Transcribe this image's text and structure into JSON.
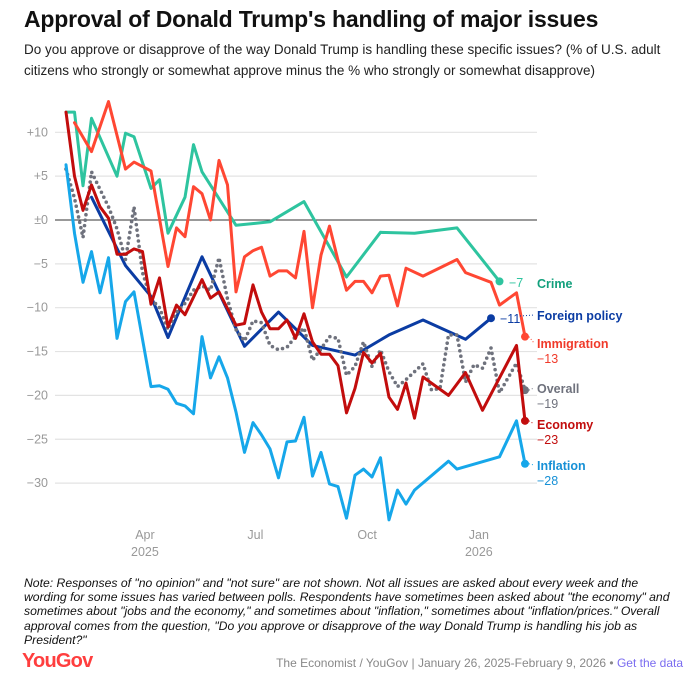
{
  "title": "Approval of Donald Trump's handling of major issues",
  "subtitle": "Do you approve or disapprove of the way Donald Trump is handling these specific issues? (% of U.S. adult citizens who strongly or somewhat approve minus the % who strongly or somewhat disapprove)",
  "note": "Note: Responses of \"no opinion\" and \"not sure\" are not shown. Not all issues are asked about every week and the wording for some issues has varied between polls. Respondents have sometimes been asked about \"the economy\" and sometimes about \"jobs and the economy,\" and sometimes about \"inflation,\" sometimes about \"inflation/prices.\" Overall approval comes from the question, \"Do you approve or disapprove of the way Donald Trump is handling his job as President?\"",
  "footer": {
    "logo": "YouGov",
    "source": "The Economist / YouGov | January 26, 2025-February 9, 2026 •",
    "link": "Get the data"
  },
  "chart_data": {
    "type": "line",
    "ylim": [
      -35,
      13
    ],
    "yticks": [
      10,
      5,
      0,
      -5,
      -10,
      -15,
      -20,
      -25,
      -30
    ],
    "ytick_labels": [
      "+10",
      "+5",
      "±0",
      "−5",
      "−10",
      "−15",
      "−20",
      "−25",
      "−30"
    ],
    "xticks": [
      {
        "date": "2025-04-01",
        "label": "Apr",
        "sub": "2025"
      },
      {
        "date": "2025-07-01",
        "label": "Jul",
        "sub": ""
      },
      {
        "date": "2025-10-01",
        "label": "Oct",
        "sub": ""
      },
      {
        "date": "2026-01-01",
        "label": "Jan",
        "sub": "2026"
      }
    ],
    "grid": true,
    "x": [
      "2025-01-26",
      "2025-02-02",
      "2025-02-09",
      "2025-02-16",
      "2025-02-23",
      "2025-03-02",
      "2025-03-09",
      "2025-03-16",
      "2025-03-23",
      "2025-03-30",
      "2025-04-06",
      "2025-04-13",
      "2025-04-20",
      "2025-04-27",
      "2025-05-04",
      "2025-05-11",
      "2025-05-18",
      "2025-05-25",
      "2025-06-01",
      "2025-06-08",
      "2025-06-15",
      "2025-06-22",
      "2025-06-29",
      "2025-07-06",
      "2025-07-13",
      "2025-07-20",
      "2025-07-27",
      "2025-08-03",
      "2025-08-10",
      "2025-08-17",
      "2025-08-24",
      "2025-08-31",
      "2025-09-07",
      "2025-09-14",
      "2025-09-21",
      "2025-09-28",
      "2025-10-05",
      "2025-10-12",
      "2025-10-19",
      "2025-10-26",
      "2025-11-02",
      "2025-11-09",
      "2025-11-16",
      "2025-11-23",
      "2025-11-30",
      "2025-12-07",
      "2025-12-14",
      "2025-12-21",
      "2025-12-28",
      "2026-01-04",
      "2026-01-11",
      "2026-01-18",
      "2026-01-25",
      "2026-02-01",
      "2026-02-08"
    ],
    "series": [
      {
        "name": "Crime",
        "final": "−7",
        "color": "#2ec49f",
        "label_color": "#12a07c",
        "values": [
          12.3,
          12.3,
          3.9,
          11.6,
          null,
          null,
          5.0,
          9.9,
          9.5,
          null,
          3.6,
          4.6,
          -1.5,
          null,
          2.6,
          8.6,
          5.5,
          null,
          null,
          null,
          -0.6,
          null,
          null,
          null,
          -0.2,
          null,
          null,
          null,
          2.1,
          null,
          null,
          null,
          null,
          -6.5,
          null,
          null,
          null,
          -1.4,
          null,
          null,
          null,
          -1.5,
          null,
          null,
          null,
          null,
          -0.9,
          null,
          null,
          null,
          null,
          -7,
          null,
          null,
          null
        ]
      },
      {
        "name": "Foreign policy",
        "final": "−11",
        "color": "#0b3ca3",
        "label_color": "#0b3ca3",
        "values": [
          null,
          null,
          null,
          2.6,
          null,
          null,
          null,
          -5.2,
          null,
          null,
          -8.7,
          null,
          -13.4,
          null,
          null,
          null,
          -4.2,
          null,
          null,
          null,
          null,
          -14.4,
          null,
          null,
          null,
          -10.5,
          null,
          null,
          null,
          -14.3,
          null,
          null,
          null,
          null,
          -15.4,
          null,
          null,
          null,
          -13.1,
          null,
          null,
          null,
          -11.4,
          null,
          null,
          null,
          null,
          -13.6,
          null,
          null,
          -11.2,
          null,
          null,
          null,
          null
        ]
      },
      {
        "name": "Immigration",
        "final": "−13",
        "color": "#ff4733",
        "label_color": "#f03a2a",
        "values": [
          null,
          11.1,
          null,
          7.8,
          null,
          13.5,
          null,
          5.8,
          6.6,
          null,
          5.6,
          null,
          -5.3,
          -0.9,
          -1.9,
          3.8,
          3.0,
          0,
          6.8,
          4.0,
          -8.2,
          -4.2,
          -3.5,
          -3.1,
          -6.4,
          -5.8,
          -5.8,
          -6.6,
          -1.3,
          -10,
          -4.0,
          -0.7,
          -4.6,
          -8,
          -7,
          -7,
          -8.3,
          -6.4,
          -6.3,
          -9.8,
          -5.5,
          null,
          -6.4,
          null,
          null,
          null,
          -4.5,
          -6.0,
          null,
          null,
          -7.1,
          -9.7,
          null,
          -8.3,
          -13.3
        ]
      },
      {
        "name": "Overall",
        "final": "−19",
        "color": "#6f727d",
        "label_color": "#6f727d",
        "dotted": true,
        "values": [
          5.8,
          2.5,
          -2.0,
          5.5,
          3.5,
          1.5,
          -1,
          -4.5,
          1.5,
          -6,
          -9,
          -10,
          -12.5,
          -10.5,
          -9.5,
          -8,
          -7.5,
          -8,
          -4.3,
          -9,
          -12.5,
          -13.8,
          -11.5,
          -11.7,
          -14.3,
          -14.8,
          -14.5,
          -13.3,
          -12.3,
          -16,
          -14.7,
          -13.3,
          -13.5,
          -17.7,
          -16.7,
          -13.9,
          -16.7,
          -14.8,
          -17.3,
          -19,
          -18.2,
          null,
          -16.4,
          -19.4,
          -19.2,
          -13.1,
          -13.1,
          -18.5,
          -16.5,
          -16.9,
          -14.6,
          -19.7,
          null,
          -16.3,
          -19.4
        ]
      },
      {
        "name": "Economy",
        "final": "−23",
        "color": "#c20d0d",
        "label_color": "#c20d0d",
        "values": [
          12.3,
          5.0,
          1.1,
          4.0,
          1.5,
          0.2,
          -3.9,
          -3.9,
          -3.3,
          -3.6,
          -9.6,
          -6.6,
          -12.2,
          -9.7,
          -10.8,
          -8.8,
          -6.8,
          -8.9,
          -8.2,
          null,
          -12,
          -11.8,
          -7.4,
          -10.5,
          -12.4,
          -12.4,
          -11.4,
          -13.5,
          -10.7,
          -13.9,
          -15.3,
          -15.3,
          -16.6,
          -22,
          -19.2,
          -15.1,
          -16.3,
          -15.2,
          -20.2,
          -21.6,
          -18.6,
          -22.6,
          -17.9,
          null,
          null,
          -20,
          null,
          -17.4,
          null,
          -21.7,
          null,
          null,
          null,
          -14.3,
          -22.9
        ]
      },
      {
        "name": "Inflation",
        "final": "−28",
        "color": "#16a7ea",
        "label_color": "#1690d6",
        "values": [
          6.3,
          -1.5,
          -7.1,
          -3.6,
          -8.3,
          -4.3,
          -13.5,
          -9.3,
          -8.2,
          null,
          -19,
          -18.9,
          -19.3,
          -20.9,
          -21.2,
          -22.1,
          -13.3,
          -18,
          -15.6,
          -18,
          -21.9,
          -26.5,
          -23.1,
          -24.5,
          -26.1,
          -29.4,
          -25.3,
          -25.2,
          -22.5,
          -29.2,
          -26.5,
          -30.1,
          -30.4,
          -34,
          -29.1,
          -28.4,
          -29.3,
          -27.1,
          -34.2,
          -30.8,
          -32.4,
          -30.8,
          null,
          null,
          null,
          -27.5,
          -28.4,
          null,
          null,
          null,
          null,
          -27,
          null,
          -22.9,
          -27.8
        ]
      }
    ]
  }
}
